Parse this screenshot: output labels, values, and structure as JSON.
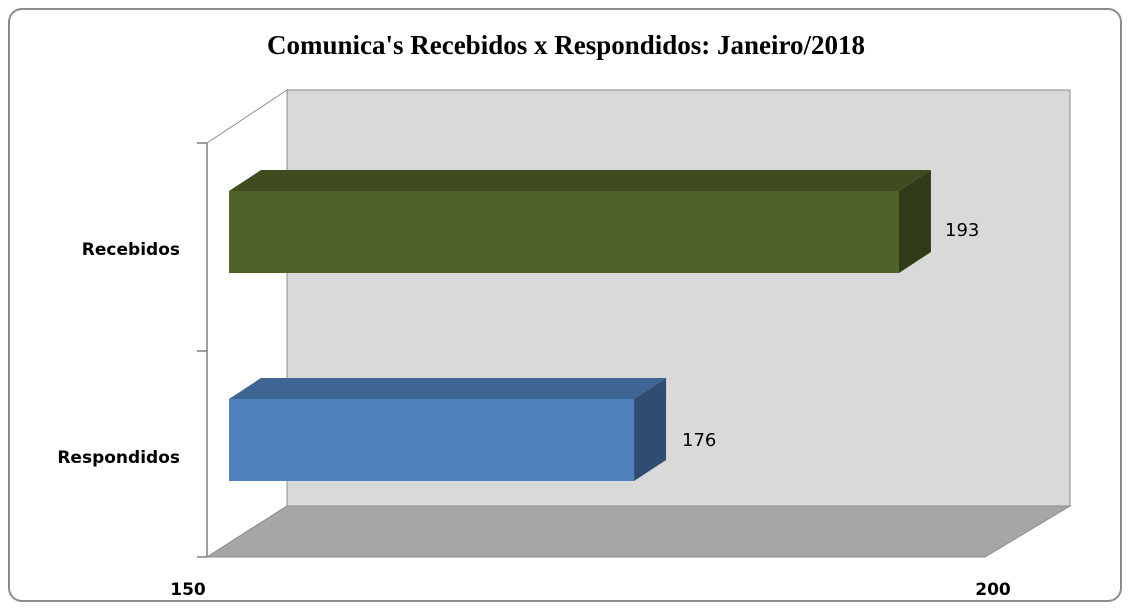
{
  "chart_data": {
    "type": "bar",
    "orientation": "horizontal",
    "title": "Comunica's Recebidos x Respondidos:  Janeiro/2018",
    "categories": [
      "Recebidos",
      "Respondidos"
    ],
    "values": [
      193,
      176
    ],
    "data_labels": [
      "193",
      "176"
    ],
    "x_ticks": [
      "150",
      "200"
    ],
    "xlim": [
      150,
      200
    ],
    "xlabel": "",
    "ylabel": "",
    "grid": false,
    "style": "3d",
    "colors": {
      "Recebidos": "#4f6228",
      "Respondidos": "#4f81bd",
      "back_wall": "#d9d9d9",
      "floor": "#a6a6a6"
    }
  }
}
